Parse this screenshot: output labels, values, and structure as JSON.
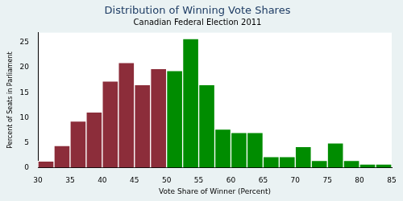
{
  "chart_data": {
    "type": "histogram",
    "title": "Distribution of Winning Vote Shares",
    "subtitle": "Canadian Federal Election 2011",
    "x_label": "Vote Share of Winner (Percent)",
    "y_label": "Percent of Seats in Parliament",
    "bins": [
      30,
      32.5,
      35,
      37.5,
      40,
      42.5,
      45,
      47.5,
      50,
      52.5,
      55,
      57.5,
      60,
      62.5,
      65,
      67.5,
      70,
      72.5,
      75,
      77.5,
      80,
      82.5,
      85
    ],
    "values": [
      1.3,
      4.4,
      9.3,
      11.1,
      17.3,
      21,
      16.6,
      19.8,
      19.4,
      25.8,
      16.6,
      7.7,
      7,
      7,
      2.2,
      2.2,
      4.2,
      1.4,
      4.9,
      1.4,
      0.7,
      0.7
    ],
    "colors": [
      "#8c2d3a",
      "#8c2d3a",
      "#8c2d3a",
      "#8c2d3a",
      "#8c2d3a",
      "#8c2d3a",
      "#8c2d3a",
      "#8c2d3a",
      "#008c00",
      "#008c00",
      "#008c00",
      "#008c00",
      "#008c00",
      "#008c00",
      "#008c00",
      "#008c00",
      "#008c00",
      "#008c00",
      "#008c00",
      "#008c00",
      "#008c00",
      "#008c00"
    ],
    "xlim": [
      30,
      85
    ],
    "xticks": [
      30,
      35,
      40,
      45,
      50,
      55,
      60,
      65,
      70,
      75,
      80,
      85
    ],
    "ylim": [
      0,
      27
    ],
    "yticks": [
      0,
      5,
      10,
      15,
      20,
      25
    ],
    "grid": false
  }
}
